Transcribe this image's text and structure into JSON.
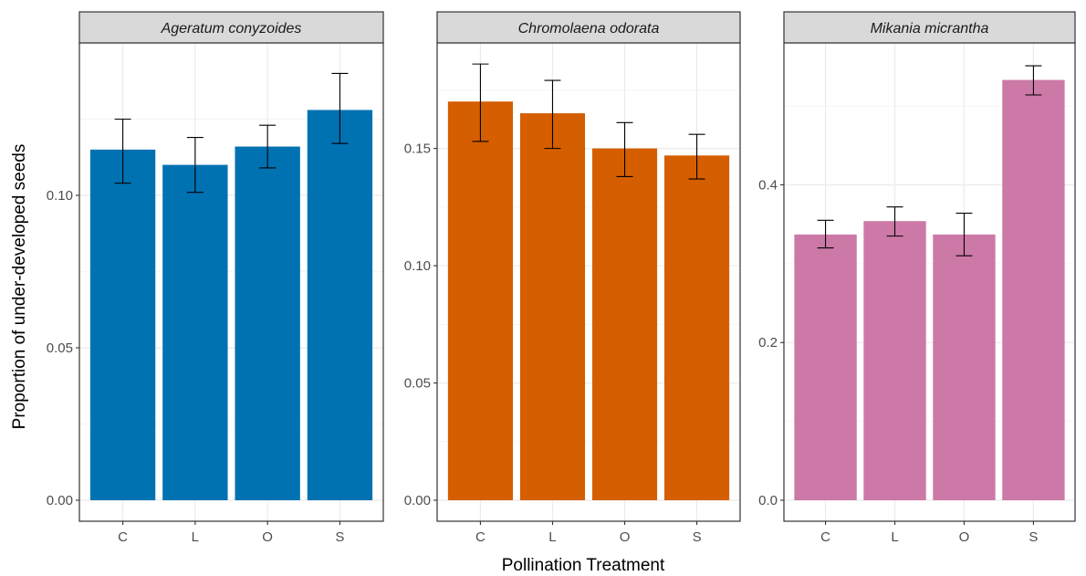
{
  "chart_data": {
    "type": "bar",
    "xlabel": "Pollination Treatment",
    "ylabel": "Proportion of under-developed seeds",
    "grid": true,
    "panels": [
      {
        "title": "Ageratum conyzoides",
        "color": "#0072B2",
        "categories": [
          "C",
          "L",
          "O",
          "S"
        ],
        "values": [
          0.115,
          0.11,
          0.116,
          0.128
        ],
        "err_low": [
          0.104,
          0.101,
          0.109,
          0.117
        ],
        "err_high": [
          0.125,
          0.119,
          0.123,
          0.14
        ],
        "ylim": [
          0,
          0.15
        ],
        "yticks": [
          0.0,
          0.05,
          0.1
        ],
        "ytick_labels": [
          "0.00",
          "0.05",
          "0.10"
        ]
      },
      {
        "title": "Chromolaena odorata",
        "color": "#D55E00",
        "categories": [
          "C",
          "L",
          "O",
          "S"
        ],
        "values": [
          0.17,
          0.165,
          0.15,
          0.147
        ],
        "err_low": [
          0.153,
          0.15,
          0.138,
          0.137
        ],
        "err_high": [
          0.186,
          0.179,
          0.161,
          0.156
        ],
        "ylim": [
          0,
          0.195
        ],
        "yticks": [
          0.0,
          0.05,
          0.1,
          0.15
        ],
        "ytick_labels": [
          "0.00",
          "0.05",
          "0.10",
          "0.15"
        ]
      },
      {
        "title": "Mikania micrantha",
        "color": "#CC79A7",
        "categories": [
          "C",
          "L",
          "O",
          "S"
        ],
        "values": [
          0.337,
          0.354,
          0.337,
          0.533
        ],
        "err_low": [
          0.32,
          0.335,
          0.31,
          0.514
        ],
        "err_high": [
          0.355,
          0.372,
          0.364,
          0.551
        ],
        "ylim": [
          0,
          0.58
        ],
        "yticks": [
          0.0,
          0.2,
          0.4
        ],
        "ytick_labels": [
          "0.0",
          "0.2",
          "0.4"
        ]
      }
    ]
  }
}
